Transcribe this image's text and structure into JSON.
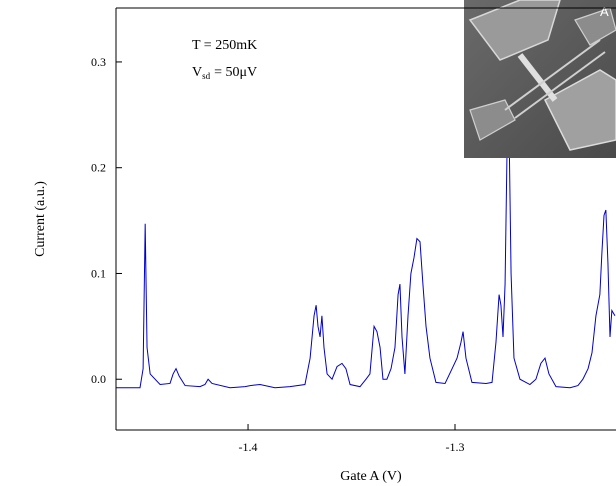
{
  "chart_data": {
    "type": "line",
    "x_label": "Gate A (V)",
    "y_label": "Current (a.u.)",
    "annotation_temperature": "T = 250mK",
    "annotation_bias": {
      "symbol": "V",
      "subscript": "sd",
      "rest": "= 50μV"
    },
    "inset_label": "A",
    "xlim": [
      -1.4638,
      -1.2222
    ],
    "ylim": [
      -0.048,
      0.351
    ],
    "xticks": [
      -1.4,
      -1.3
    ],
    "yticks": [
      {
        "value": 0,
        "label": "0.0"
      },
      0.1,
      0.2,
      0.3
    ],
    "x": [
      -1.4638,
      -1.457,
      -1.4522,
      -1.4507,
      -1.4497,
      -1.4488,
      -1.4473,
      -1.4425,
      -1.4377,
      -1.4362,
      -1.4348,
      -1.4333,
      -1.4304,
      -1.4232,
      -1.4208,
      -1.4193,
      -1.4174,
      -1.4087,
      -1.4014,
      -1.399,
      -1.3942,
      -1.387,
      -1.3797,
      -1.3725,
      -1.37,
      -1.3681,
      -1.3671,
      -1.3662,
      -1.3652,
      -1.3643,
      -1.3633,
      -1.3618,
      -1.3594,
      -1.357,
      -1.3546,
      -1.3527,
      -1.3507,
      -1.3459,
      -1.343,
      -1.3411,
      -1.3391,
      -1.3377,
      -1.3362,
      -1.3348,
      -1.3329,
      -1.3309,
      -1.329,
      -1.3275,
      -1.3266,
      -1.3256,
      -1.3242,
      -1.3227,
      -1.3213,
      -1.3198,
      -1.3184,
      -1.3169,
      -1.3155,
      -1.314,
      -1.3121,
      -1.3092,
      -1.3048,
      -1.3014,
      -1.299,
      -1.2971,
      -1.2961,
      -1.2947,
      -1.2918,
      -1.285,
      -1.2821,
      -1.2802,
      -1.2787,
      -1.2778,
      -1.2768,
      -1.2758,
      -1.2749,
      -1.2739,
      -1.2729,
      -1.2715,
      -1.2686,
      -1.2638,
      -1.2609,
      -1.2585,
      -1.2565,
      -1.2546,
      -1.2512,
      -1.2444,
      -1.2406,
      -1.2382,
      -1.2357,
      -1.2338,
      -1.2319,
      -1.23,
      -1.229,
      -1.228,
      -1.2271,
      -1.2261,
      -1.2251,
      -1.2242,
      -1.2227
    ],
    "series": [
      {
        "color": "#0000cc",
        "values": [
          -0.008,
          -0.008,
          -0.008,
          0.01,
          0.147,
          0.03,
          0.005,
          -0.005,
          -0.004,
          0.005,
          0.01,
          0.003,
          -0.006,
          -0.007,
          -0.005,
          0.0,
          -0.004,
          -0.008,
          -0.007,
          -0.006,
          -0.005,
          -0.008,
          -0.007,
          -0.005,
          0.02,
          0.06,
          0.07,
          0.05,
          0.04,
          0.06,
          0.03,
          0.005,
          0.0,
          0.012,
          0.015,
          0.01,
          -0.005,
          -0.007,
          0.0,
          0.005,
          0.05,
          0.045,
          0.03,
          0.0,
          0.0,
          0.01,
          0.03,
          0.08,
          0.09,
          0.04,
          0.005,
          0.06,
          0.1,
          0.115,
          0.133,
          0.13,
          0.09,
          0.05,
          0.02,
          -0.003,
          -0.004,
          0.01,
          0.02,
          0.035,
          0.045,
          0.02,
          -0.003,
          -0.004,
          -0.003,
          0.035,
          0.08,
          0.07,
          0.04,
          0.09,
          0.21,
          0.24,
          0.1,
          0.02,
          0.0,
          -0.005,
          0.0,
          0.015,
          0.02,
          0.005,
          -0.007,
          -0.008,
          -0.006,
          0.0,
          0.01,
          0.025,
          0.06,
          0.08,
          0.12,
          0.155,
          0.16,
          0.11,
          0.04,
          0.065,
          0.06
        ]
      }
    ]
  }
}
